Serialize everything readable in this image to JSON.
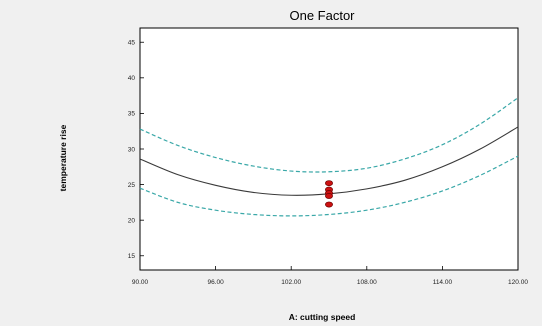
{
  "chart_data": {
    "type": "line",
    "title": "One Factor",
    "xlabel": "A: cutting speed",
    "ylabel": "temperature rise",
    "xlim": [
      90,
      120
    ],
    "ylim": [
      13,
      47
    ],
    "xticks": [
      "90.00",
      "96.00",
      "102.00",
      "108.00",
      "114.00",
      "120.00"
    ],
    "yticks": [
      "15",
      "20",
      "25",
      "30",
      "35",
      "40",
      "45"
    ],
    "grid": false,
    "legend": "none",
    "series": [
      {
        "role": "prediction",
        "style": "solid",
        "color": "#3a3a3a",
        "x": [
          90,
          93,
          96,
          99,
          102,
          105,
          108,
          111,
          114,
          117,
          120
        ],
        "y": [
          28.6,
          26.4,
          24.9,
          23.9,
          23.5,
          23.7,
          24.4,
          25.6,
          27.5,
          30.0,
          33.1
        ]
      },
      {
        "role": "upper-confidence",
        "style": "dashed",
        "color": "#3aa8a8",
        "x": [
          90,
          93,
          96,
          99,
          102,
          105,
          108,
          111,
          114,
          117,
          120
        ],
        "y": [
          32.8,
          30.5,
          28.8,
          27.6,
          26.9,
          26.8,
          27.3,
          28.6,
          30.6,
          33.5,
          37.2
        ]
      },
      {
        "role": "lower-confidence",
        "style": "dashed",
        "color": "#3aa8a8",
        "x": [
          90,
          93,
          96,
          99,
          102,
          105,
          108,
          111,
          114,
          117,
          120
        ],
        "y": [
          24.5,
          22.5,
          21.4,
          20.8,
          20.6,
          20.8,
          21.4,
          22.5,
          24.1,
          26.3,
          29.0
        ]
      }
    ],
    "points": {
      "role": "design-points",
      "color": "#cc1111",
      "x": [
        105,
        105,
        105,
        105,
        105
      ],
      "y": [
        25.2,
        24.3,
        23.8,
        23.4,
        22.2
      ]
    }
  }
}
